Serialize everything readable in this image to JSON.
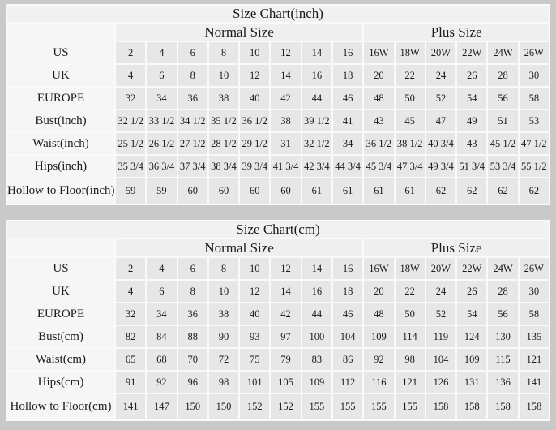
{
  "colors": {
    "page_background": "#c9c9c9",
    "gridline": "#fafafa",
    "title_background": "#f1f1f1",
    "group_header_background": "#efefef",
    "label_background": "#f6f6f6",
    "value_background": "#e7e7e7",
    "text": "#1b1b1b"
  },
  "chart_data": [
    {
      "type": "table",
      "title": "Size Chart(inch)",
      "column_groups": [
        {
          "label": "Normal Size",
          "span": 8
        },
        {
          "label": "Plus Size",
          "span": 6
        }
      ],
      "rows": [
        {
          "label": "US",
          "values": [
            "2",
            "4",
            "6",
            "8",
            "10",
            "12",
            "14",
            "16",
            "16W",
            "18W",
            "20W",
            "22W",
            "24W",
            "26W"
          ]
        },
        {
          "label": "UK",
          "values": [
            "4",
            "6",
            "8",
            "10",
            "12",
            "14",
            "16",
            "18",
            "20",
            "22",
            "24",
            "26",
            "28",
            "30"
          ]
        },
        {
          "label": "EUROPE",
          "values": [
            "32",
            "34",
            "36",
            "38",
            "40",
            "42",
            "44",
            "46",
            "48",
            "50",
            "52",
            "54",
            "56",
            "58"
          ]
        },
        {
          "label": "Bust(inch)",
          "values": [
            "32 1/2",
            "33 1/2",
            "34 1/2",
            "35 1/2",
            "36 1/2",
            "38",
            "39 1/2",
            "41",
            "43",
            "45",
            "47",
            "49",
            "51",
            "53"
          ]
        },
        {
          "label": "Waist(inch)",
          "values": [
            "25 1/2",
            "26 1/2",
            "27 1/2",
            "28 1/2",
            "29 1/2",
            "31",
            "32 1/2",
            "34",
            "36 1/2",
            "38 1/2",
            "40 3/4",
            "43",
            "45 1/2",
            "47 1/2"
          ]
        },
        {
          "label": "Hips(inch)",
          "values": [
            "35 3/4",
            "36 3/4",
            "37 3/4",
            "38 3/4",
            "39 3/4",
            "41 3/4",
            "42 3/4",
            "44 3/4",
            "45 3/4",
            "47 3/4",
            "49 3/4",
            "51 3/4",
            "53 3/4",
            "55 1/2"
          ]
        },
        {
          "label": "Hollow to Floor(inch)",
          "values": [
            "59",
            "59",
            "60",
            "60",
            "60",
            "60",
            "61",
            "61",
            "61",
            "61",
            "62",
            "62",
            "62",
            "62"
          ]
        }
      ]
    },
    {
      "type": "table",
      "title": "Size Chart(cm)",
      "column_groups": [
        {
          "label": "Normal Size",
          "span": 8
        },
        {
          "label": "Plus Size",
          "span": 6
        }
      ],
      "rows": [
        {
          "label": "US",
          "values": [
            "2",
            "4",
            "6",
            "8",
            "10",
            "12",
            "14",
            "16",
            "16W",
            "18W",
            "20W",
            "22W",
            "24W",
            "26W"
          ]
        },
        {
          "label": "UK",
          "values": [
            "4",
            "6",
            "8",
            "10",
            "12",
            "14",
            "16",
            "18",
            "20",
            "22",
            "24",
            "26",
            "28",
            "30"
          ]
        },
        {
          "label": "EUROPE",
          "values": [
            "32",
            "34",
            "36",
            "38",
            "40",
            "42",
            "44",
            "46",
            "48",
            "50",
            "52",
            "54",
            "56",
            "58"
          ]
        },
        {
          "label": "Bust(cm)",
          "values": [
            "82",
            "84",
            "88",
            "90",
            "93",
            "97",
            "100",
            "104",
            "109",
            "114",
            "119",
            "124",
            "130",
            "135"
          ]
        },
        {
          "label": "Waist(cm)",
          "values": [
            "65",
            "68",
            "70",
            "72",
            "75",
            "79",
            "83",
            "86",
            "92",
            "98",
            "104",
            "109",
            "115",
            "121"
          ]
        },
        {
          "label": "Hips(cm)",
          "values": [
            "91",
            "92",
            "96",
            "98",
            "101",
            "105",
            "109",
            "112",
            "116",
            "121",
            "126",
            "131",
            "136",
            "141"
          ]
        },
        {
          "label": "Hollow to Floor(cm)",
          "values": [
            "141",
            "147",
            "150",
            "150",
            "152",
            "152",
            "155",
            "155",
            "155",
            "155",
            "158",
            "158",
            "158",
            "158"
          ]
        }
      ]
    }
  ]
}
